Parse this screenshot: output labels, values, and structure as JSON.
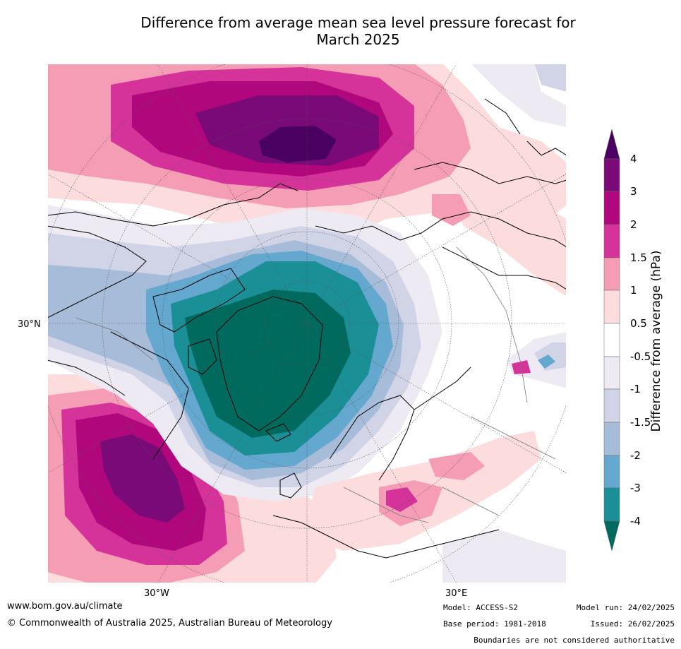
{
  "title": {
    "line1": "Difference from average mean sea level pressure forecast for",
    "line2": "March 2025"
  },
  "map": {
    "projection": "north-polar-stereographic",
    "lat_label_30n": "30°N",
    "lon_label_30w": "30°W",
    "lon_label_30e": "30°E"
  },
  "colorbar": {
    "title": "Difference from average (hPa)",
    "tick_labels": [
      "4",
      "3",
      "2",
      "1.5",
      "1",
      "0.5",
      "-0.5",
      "-1",
      "-1.5",
      "-2",
      "-3",
      "-4"
    ],
    "colors": {
      "gt4": "#4a0060",
      "3to4": "#7a0a78",
      "2to3": "#b0087c",
      "1.5to2": "#d6339a",
      "1to1.5": "#f59db5",
      "0.5to1": "#fcdcdc",
      "neutral": "#ffffff",
      "m1tom0.5": "#eeeaf3",
      "m1.5tom1": "#d0d4e6",
      "m2tom1.5": "#a6bcd9",
      "m3tom2": "#64a8cf",
      "m4tom3": "#1b8f96",
      "ltm4": "#006a5e"
    }
  },
  "footer": {
    "website": "www.bom.gov.au/climate",
    "copyright": "© Commonwealth of Australia 2025, Australian Bureau of Meteorology",
    "model": "Model: ACCESS-S2",
    "base_period": "Base period: 1981-2018",
    "model_run": "Model run: 24/02/2025",
    "issued": "Issued: 26/02/2025",
    "disclaimer": "Boundaries are not considered authoritative"
  }
}
